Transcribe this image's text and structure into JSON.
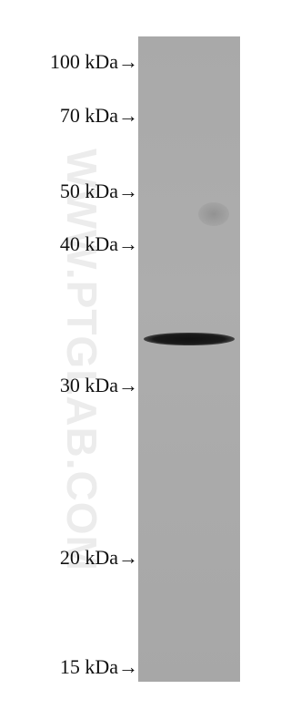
{
  "markers": [
    "100 kDa→",
    "70 kDa→",
    "50 kDa→",
    "40 kDa→",
    "30 kDa→",
    "20 kDa→",
    "15 kDa→"
  ],
  "watermark": "WWW.PTGLAB.COM"
}
